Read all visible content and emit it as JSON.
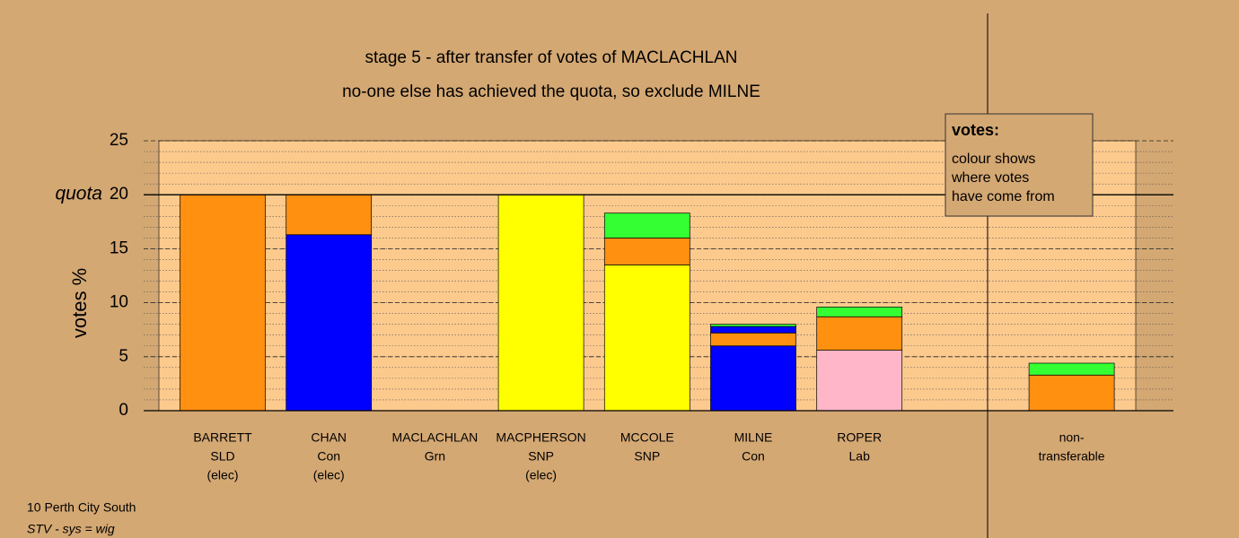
{
  "chart_data": {
    "type": "stacked_bar",
    "title": "stage 5 - after transfer of votes of MACLACHLAN",
    "subtitle": "no-one else has achieved the quota, so exclude MILNE",
    "y_label": "votes %",
    "quota_label": "quota",
    "quota": 20,
    "categories": [
      [
        "BARRETT",
        "SLD",
        "(elec)"
      ],
      [
        "CHAN",
        "Con",
        "(elec)"
      ],
      [
        "MACLACHLAN",
        "Grn"
      ],
      [
        "MACPHERSON",
        "SNP",
        "(elec)"
      ],
      [
        "MCCOLE",
        "SNP"
      ],
      [
        "MILNE",
        "Con"
      ],
      [
        "ROPER",
        "Lab"
      ],
      [
        "non-",
        "transferable"
      ]
    ],
    "series": [
      {
        "color": "#0000ff",
        "values": [
          0,
          16.3,
          0,
          0,
          0,
          6.0,
          0,
          0
        ]
      },
      {
        "color": "#ffff00",
        "values": [
          0,
          0,
          0,
          20,
          13.5,
          0,
          0,
          0
        ]
      },
      {
        "color": "#ffb6c8",
        "values": [
          0,
          0,
          0,
          0,
          0,
          0,
          5.6,
          0
        ]
      },
      {
        "color": "#ff9010",
        "values": [
          20,
          3.7,
          0,
          0,
          2.5,
          1.2,
          3.1,
          3.3
        ]
      },
      {
        "color": "#0000ff",
        "values": [
          0,
          0,
          0,
          0,
          0,
          0.6,
          0,
          0
        ]
      },
      {
        "color": "#33ff33",
        "values": [
          0,
          0,
          0,
          0,
          2.3,
          0.2,
          0.9,
          1.1
        ]
      }
    ],
    "ylim": [
      0,
      25
    ],
    "yticks": [
      0,
      5,
      10,
      15,
      20,
      25
    ],
    "minor_grid_step": 1,
    "legend_title": "votes:",
    "legend_text": [
      "colour shows",
      "where votes",
      "have come from"
    ],
    "footer": [
      "10 Perth City South",
      "STV - sys = wig"
    ]
  }
}
